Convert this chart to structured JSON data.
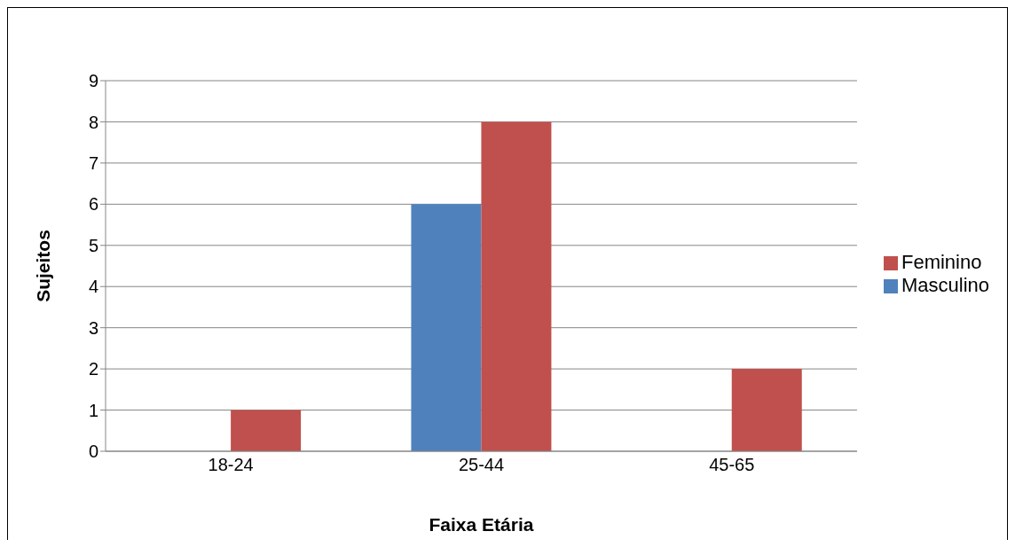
{
  "chart_data": {
    "type": "bar",
    "xlabel": "Faixa Etária",
    "ylabel": "Sujeitos",
    "categories": [
      "18-24",
      "25-44",
      "45-65"
    ],
    "series": [
      {
        "name": "Masculino",
        "color": "#4f81bd",
        "values": [
          0,
          6,
          0
        ]
      },
      {
        "name": "Feminino",
        "color": "#c0504d",
        "values": [
          1,
          8,
          2
        ]
      }
    ],
    "ylim": [
      0,
      9
    ],
    "yticks": [
      0,
      1,
      2,
      3,
      4,
      5,
      6,
      7,
      8,
      9
    ],
    "grid": "y",
    "legend": "right"
  }
}
